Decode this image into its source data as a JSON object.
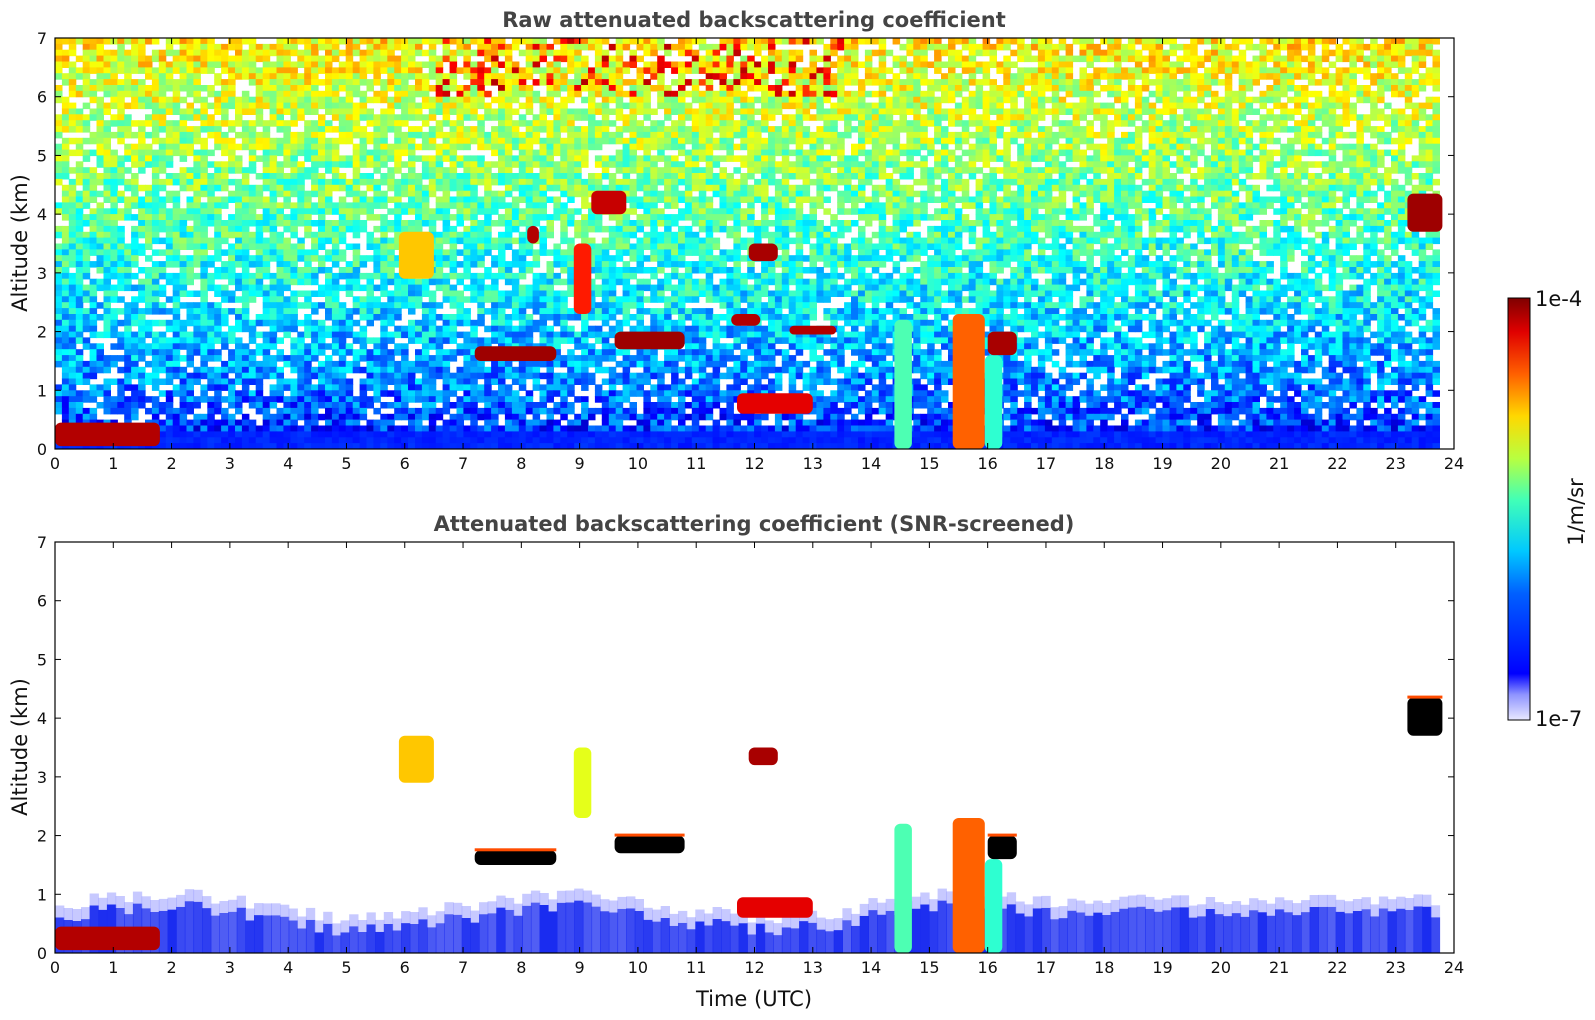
{
  "chart_data": [
    {
      "type": "heatmap",
      "title": "Raw attenuated backscattering coefficient",
      "xlabel": "",
      "ylabel": "Altitude (km)",
      "xlim": [
        0,
        24
      ],
      "ylim": [
        0,
        7
      ],
      "xticks": [
        "0",
        "1",
        "2",
        "3",
        "4",
        "5",
        "6",
        "7",
        "8",
        "9",
        "10",
        "11",
        "12",
        "13",
        "14",
        "15",
        "16",
        "17",
        "18",
        "19",
        "20",
        "21",
        "22",
        "23",
        "24"
      ],
      "yticks": [
        "0",
        "1",
        "2",
        "3",
        "4",
        "5",
        "6",
        "7"
      ],
      "features": [
        {
          "t0": 0.0,
          "t1": 1.8,
          "z0": 0.05,
          "z1": 0.45,
          "level": 0.95
        },
        {
          "t0": 5.9,
          "t1": 6.5,
          "z0": 2.9,
          "z1": 3.7,
          "level": 0.68
        },
        {
          "t0": 7.2,
          "t1": 8.6,
          "z0": 1.5,
          "z1": 1.75,
          "level": 0.97
        },
        {
          "t0": 9.6,
          "t1": 10.8,
          "z0": 1.7,
          "z1": 2.0,
          "level": 0.97
        },
        {
          "t0": 11.6,
          "t1": 12.1,
          "z0": 2.1,
          "z1": 2.3,
          "level": 0.95
        },
        {
          "t0": 11.9,
          "t1": 12.4,
          "z0": 3.2,
          "z1": 3.5,
          "level": 0.96
        },
        {
          "t0": 12.6,
          "t1": 13.4,
          "z0": 1.95,
          "z1": 2.1,
          "level": 0.95
        },
        {
          "t0": 11.7,
          "t1": 13.0,
          "z0": 0.6,
          "z1": 0.95,
          "level": 0.9
        },
        {
          "t0": 8.1,
          "t1": 8.3,
          "z0": 3.5,
          "z1": 3.8,
          "level": 0.95
        },
        {
          "t0": 8.9,
          "t1": 9.2,
          "z0": 2.3,
          "z1": 3.5,
          "level": 0.85
        },
        {
          "t0": 9.2,
          "t1": 9.8,
          "z0": 4.0,
          "z1": 4.4,
          "level": 0.93
        },
        {
          "t0": 14.4,
          "t1": 14.7,
          "z0": 0.0,
          "z1": 2.2,
          "level": 0.45
        },
        {
          "t0": 15.4,
          "t1": 15.95,
          "z0": 0.0,
          "z1": 2.3,
          "level": 0.78
        },
        {
          "t0": 15.95,
          "t1": 16.25,
          "z0": 0.0,
          "z1": 1.6,
          "level": 0.42
        },
        {
          "t0": 16.0,
          "t1": 16.5,
          "z0": 1.6,
          "z1": 2.0,
          "level": 0.96
        },
        {
          "t0": 23.2,
          "t1": 23.8,
          "z0": 3.7,
          "z1": 4.35,
          "level": 0.97
        }
      ]
    },
    {
      "type": "heatmap",
      "title": "Attenuated backscattering coefficient (SNR-screened)",
      "xlabel": "Time (UTC)",
      "ylabel": "Altitude (km)",
      "xlim": [
        0,
        24
      ],
      "ylim": [
        0,
        7
      ],
      "xticks": [
        "0",
        "1",
        "2",
        "3",
        "4",
        "5",
        "6",
        "7",
        "8",
        "9",
        "10",
        "11",
        "12",
        "13",
        "14",
        "15",
        "16",
        "17",
        "18",
        "19",
        "20",
        "21",
        "22",
        "23",
        "24"
      ],
      "yticks": [
        "0",
        "1",
        "2",
        "3",
        "4",
        "5",
        "6",
        "7"
      ],
      "features": [
        {
          "t0": 0.0,
          "t1": 1.8,
          "z0": 0.05,
          "z1": 0.45,
          "level": 0.95
        },
        {
          "t0": 5.9,
          "t1": 6.5,
          "z0": 2.9,
          "z1": 3.7,
          "level": 0.68
        },
        {
          "t0": 7.2,
          "t1": 8.6,
          "z0": 1.5,
          "z1": 1.75,
          "level": 1.0
        },
        {
          "t0": 9.6,
          "t1": 10.8,
          "z0": 1.7,
          "z1": 2.0,
          "level": 1.0
        },
        {
          "t0": 11.9,
          "t1": 12.4,
          "z0": 3.2,
          "z1": 3.5,
          "level": 0.96
        },
        {
          "t0": 11.7,
          "t1": 13.0,
          "z0": 0.6,
          "z1": 0.95,
          "level": 0.9
        },
        {
          "t0": 8.9,
          "t1": 9.2,
          "z0": 2.3,
          "z1": 3.5,
          "level": 0.6
        },
        {
          "t0": 14.4,
          "t1": 14.7,
          "z0": 0.0,
          "z1": 2.2,
          "level": 0.45
        },
        {
          "t0": 15.4,
          "t1": 15.95,
          "z0": 0.0,
          "z1": 2.3,
          "level": 0.78
        },
        {
          "t0": 15.95,
          "t1": 16.25,
          "z0": 0.0,
          "z1": 1.6,
          "level": 0.42
        },
        {
          "t0": 16.0,
          "t1": 16.5,
          "z0": 1.6,
          "z1": 2.0,
          "level": 1.0
        },
        {
          "t0": 23.2,
          "t1": 23.8,
          "z0": 3.7,
          "z1": 4.35,
          "level": 1.0
        }
      ]
    }
  ],
  "colorbar": {
    "label": "1/m/sr",
    "max_label": "1e-4",
    "min_label": "1e-7",
    "colormap": "jet",
    "scale": "log"
  },
  "colors": {
    "jet_low": "#00007f",
    "jet_mid": "#7fff7f",
    "jet_high": "#7f0000",
    "boundary_layer": "#1a2cf0"
  }
}
